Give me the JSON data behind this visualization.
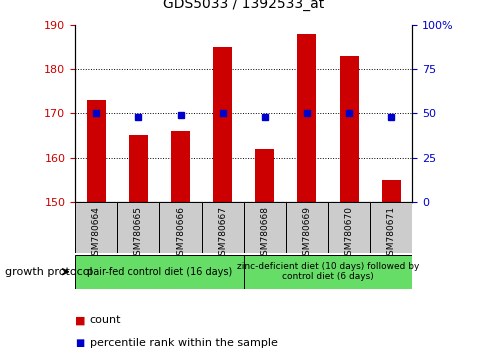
{
  "title": "GDS5033 / 1392533_at",
  "samples": [
    "GSM780664",
    "GSM780665",
    "GSM780666",
    "GSM780667",
    "GSM780668",
    "GSM780669",
    "GSM780670",
    "GSM780671"
  ],
  "counts": [
    173,
    165,
    166,
    185,
    162,
    188,
    183,
    155
  ],
  "percentiles": [
    50,
    48,
    49,
    50,
    48,
    50,
    50,
    48
  ],
  "ylim_left": [
    150,
    190
  ],
  "ylim_right": [
    0,
    100
  ],
  "yticks_left": [
    150,
    160,
    170,
    180,
    190
  ],
  "yticks_right": [
    0,
    25,
    50,
    75,
    100
  ],
  "bar_color": "#cc0000",
  "dot_color": "#0000cc",
  "group1_label": "pair-fed control diet (16 days)",
  "group2_label": "zinc-deficient diet (10 days) followed by\ncontrol diet (6 days)",
  "group1_indices": [
    0,
    1,
    2,
    3
  ],
  "group2_indices": [
    4,
    5,
    6,
    7
  ],
  "group_color": "#66dd66",
  "protocol_label": "growth protocol",
  "legend_count_label": "count",
  "legend_pct_label": "percentile rank within the sample",
  "tick_color_left": "#cc0000",
  "tick_color_right": "#0000cc",
  "sample_box_color": "#cccccc",
  "grid_yticks": [
    160,
    170,
    180
  ]
}
